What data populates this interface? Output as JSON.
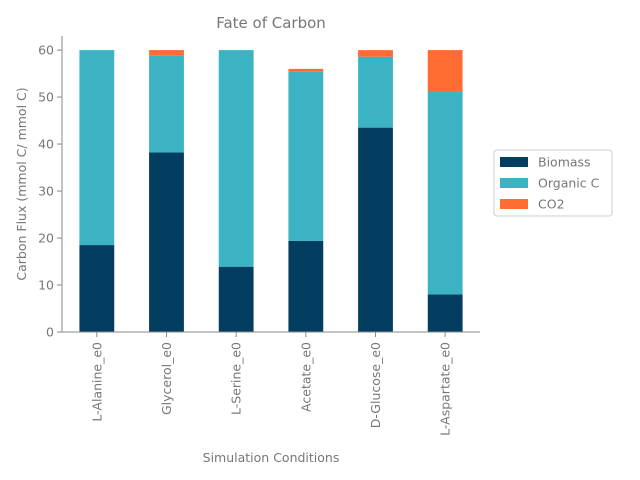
{
  "chart_data": {
    "type": "bar",
    "stacked": true,
    "title": "Fate of Carbon",
    "xlabel": "Simulation Conditions",
    "ylabel": "Carbon Flux (mmol C/ mmol C)",
    "ylim": [
      0,
      63
    ],
    "yticks": [
      0,
      10,
      20,
      30,
      40,
      50,
      60
    ],
    "categories": [
      "L-Alanine_e0",
      "Glycerol_e0",
      "L-Serine_e0",
      "Acetate_e0",
      "D-Glucose_e0",
      "L-Aspartate_e0"
    ],
    "series": [
      {
        "name": "Biomass",
        "color": "#033e60",
        "values": [
          18.5,
          38.2,
          13.9,
          19.4,
          43.5,
          8.0
        ]
      },
      {
        "name": "Organic C",
        "color": "#3bb3c3",
        "values": [
          41.5,
          20.6,
          46.1,
          36.0,
          15.1,
          43.2
        ]
      },
      {
        "name": "CO2",
        "color": "#ff6b30",
        "values": [
          0.0,
          1.2,
          0.0,
          0.6,
          1.4,
          8.8
        ]
      }
    ],
    "legend_position": "right",
    "grid": false
  }
}
